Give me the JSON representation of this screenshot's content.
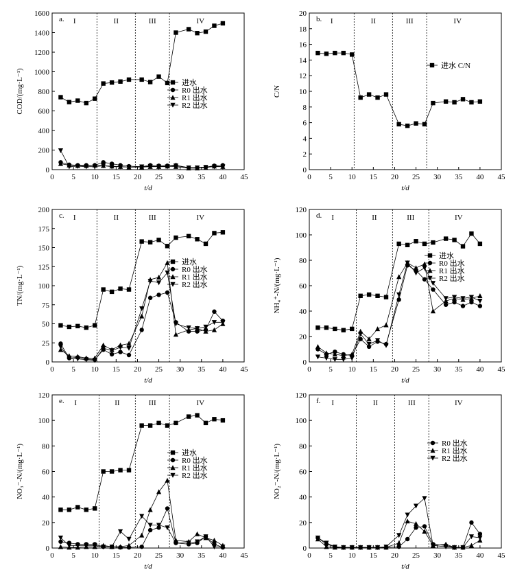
{
  "chart_data": [
    {
      "id": "a",
      "type": "line",
      "panel_label": "a.",
      "xlabel": "t/d",
      "ylabel": "COD/(mg·L⁻¹)",
      "xlim": [
        0,
        45
      ],
      "ylim": [
        0,
        1600
      ],
      "xticks": [
        0,
        5,
        10,
        15,
        20,
        25,
        30,
        35,
        40,
        45
      ],
      "yticks": [
        0,
        200,
        400,
        600,
        800,
        1000,
        1200,
        1400,
        1600
      ],
      "phase_boundaries": [
        10.5,
        19.5,
        27.5
      ],
      "phase_labels": [
        "I",
        "II",
        "III",
        "IV"
      ],
      "legend_position": "right-middle",
      "series": [
        {
          "name": "进水",
          "marker": "square",
          "x": [
            2,
            4,
            6,
            8,
            10,
            12,
            14,
            16,
            18,
            21,
            23,
            25,
            27,
            29,
            32,
            34,
            36,
            38,
            40
          ],
          "y": [
            740,
            690,
            705,
            680,
            725,
            880,
            890,
            900,
            920,
            920,
            895,
            950,
            885,
            1400,
            1435,
            1395,
            1410,
            1470,
            1495
          ]
        },
        {
          "name": "R0 出水",
          "marker": "circle",
          "x": [
            2,
            4,
            6,
            8,
            10,
            12,
            14,
            16,
            18,
            21,
            23,
            25,
            27,
            29,
            32,
            34,
            36,
            38,
            40
          ],
          "y": [
            75,
            50,
            45,
            45,
            45,
            75,
            60,
            45,
            35,
            30,
            45,
            40,
            40,
            45,
            20,
            20,
            25,
            40,
            45
          ]
        },
        {
          "name": "R1 出水",
          "marker": "triangle-up",
          "x": [
            2,
            4,
            6,
            8,
            10,
            12,
            14,
            16,
            18,
            21,
            23,
            25,
            27,
            29,
            32,
            34,
            36,
            38,
            40
          ],
          "y": [
            60,
            45,
            40,
            40,
            45,
            40,
            35,
            30,
            25,
            25,
            30,
            30,
            35,
            30,
            15,
            15,
            20,
            35,
            30
          ]
        },
        {
          "name": "R2 出水",
          "marker": "triangle-down",
          "x": [
            2,
            4,
            6,
            8,
            10,
            12,
            14,
            16,
            18,
            21,
            23,
            25,
            27,
            29,
            32,
            34,
            36,
            38,
            40
          ],
          "y": [
            195,
            30,
            35,
            30,
            30,
            40,
            30,
            30,
            25,
            30,
            35,
            30,
            30,
            40,
            20,
            20,
            25,
            30,
            30
          ]
        }
      ]
    },
    {
      "id": "b",
      "type": "line",
      "panel_label": "b.",
      "xlabel": "t/d",
      "ylabel": "C/N",
      "xlim": [
        0,
        45
      ],
      "ylim": [
        0,
        20
      ],
      "xticks": [
        0,
        5,
        10,
        15,
        20,
        25,
        30,
        35,
        40,
        45
      ],
      "yticks": [
        0,
        2,
        4,
        6,
        8,
        10,
        12,
        14,
        16,
        18,
        20
      ],
      "phase_boundaries": [
        10.5,
        19.5,
        27.5
      ],
      "phase_labels": [
        "I",
        "II",
        "III",
        "IV"
      ],
      "legend_position": "upper-right",
      "series": [
        {
          "name": "进水 C/N",
          "marker": "square",
          "x": [
            2,
            4,
            6,
            8,
            10,
            12,
            14,
            16,
            18,
            21,
            23,
            25,
            27,
            29,
            32,
            34,
            36,
            38,
            40
          ],
          "y": [
            14.9,
            14.8,
            14.9,
            14.9,
            14.7,
            9.2,
            9.6,
            9.2,
            9.6,
            5.8,
            5.6,
            5.9,
            5.8,
            8.5,
            8.7,
            8.6,
            9.0,
            8.6,
            8.7
          ]
        }
      ]
    },
    {
      "id": "c",
      "type": "line",
      "panel_label": "c.",
      "xlabel": "t/d",
      "ylabel": "TN/(mg·L⁻¹)",
      "xlim": [
        0,
        45
      ],
      "ylim": [
        0,
        200
      ],
      "xticks": [
        0,
        5,
        10,
        15,
        20,
        25,
        30,
        35,
        40,
        45
      ],
      "yticks": [
        0,
        25,
        50,
        75,
        100,
        125,
        150,
        175,
        200
      ],
      "phase_boundaries": [
        10.5,
        19.5,
        27.5
      ],
      "phase_labels": [
        "I",
        "II",
        "III",
        "IV"
      ],
      "legend_position": "right-middle",
      "series": [
        {
          "name": "进水",
          "marker": "square",
          "x": [
            2,
            4,
            6,
            8,
            10,
            12,
            14,
            16,
            18,
            21,
            23,
            25,
            27,
            29,
            32,
            34,
            36,
            38,
            40
          ],
          "y": [
            48,
            46,
            47,
            45,
            48,
            95,
            92,
            96,
            95,
            158,
            157,
            160,
            152,
            163,
            165,
            161,
            155,
            169,
            170
          ]
        },
        {
          "name": "R0 出水",
          "marker": "circle",
          "x": [
            2,
            4,
            6,
            8,
            10,
            12,
            14,
            16,
            18,
            21,
            23,
            25,
            27,
            29,
            32,
            34,
            36,
            38,
            40
          ],
          "y": [
            24,
            5,
            6,
            4,
            3,
            16,
            10,
            13,
            9,
            42,
            84,
            88,
            91,
            52,
            40,
            40,
            42,
            66,
            54
          ]
        },
        {
          "name": "R1 出水",
          "marker": "triangle-up",
          "x": [
            2,
            4,
            6,
            8,
            10,
            12,
            14,
            16,
            18,
            21,
            23,
            25,
            27,
            29,
            32,
            34,
            36,
            38,
            40
          ],
          "y": [
            16,
            8,
            7,
            5,
            5,
            22,
            16,
            22,
            24,
            60,
            108,
            111,
            130,
            36,
            42,
            44,
            40,
            42,
            50
          ]
        },
        {
          "name": "R2 出水",
          "marker": "triangle-down",
          "x": [
            2,
            4,
            6,
            8,
            10,
            12,
            14,
            16,
            18,
            21,
            23,
            25,
            27,
            29,
            32,
            34,
            36,
            38,
            40
          ],
          "y": [
            20,
            5,
            4,
            3,
            2,
            18,
            15,
            19,
            18,
            70,
            106,
            104,
            117,
            50,
            45,
            44,
            46,
            52,
            52
          ]
        }
      ]
    },
    {
      "id": "d",
      "type": "line",
      "panel_label": "d.",
      "xlabel": "t/d",
      "ylabel": "NH₄⁺-N/(mg·L⁻¹)",
      "xlim": [
        0,
        45
      ],
      "ylim": [
        0,
        120
      ],
      "xticks": [
        0,
        5,
        10,
        15,
        20,
        25,
        30,
        35,
        40,
        45
      ],
      "yticks": [
        0,
        20,
        40,
        60,
        80,
        100,
        120
      ],
      "phase_boundaries": [
        11,
        19.5,
        28
      ],
      "phase_labels": [
        "I",
        "II",
        "III",
        "IV"
      ],
      "legend_position": "right-middle",
      "series": [
        {
          "name": "进水",
          "marker": "square",
          "x": [
            2,
            4,
            6,
            8,
            10,
            12,
            14,
            16,
            18,
            21,
            23,
            25,
            27,
            29,
            32,
            34,
            36,
            38,
            40
          ],
          "y": [
            27,
            27,
            26,
            25,
            26,
            52,
            53,
            52,
            51,
            93,
            92,
            95,
            93,
            94,
            97,
            96,
            91,
            101,
            93
          ]
        },
        {
          "name": "R0 出水",
          "marker": "circle",
          "x": [
            2,
            4,
            6,
            8,
            10,
            12,
            14,
            16,
            18,
            21,
            23,
            25,
            27,
            29,
            32,
            34,
            36,
            38,
            40
          ],
          "y": [
            10,
            6,
            8,
            6,
            5,
            18,
            12,
            16,
            14,
            49,
            76,
            72,
            65,
            57,
            45,
            47,
            44,
            47,
            44
          ]
        },
        {
          "name": "R1 出水",
          "marker": "triangle-up",
          "x": [
            2,
            4,
            6,
            8,
            10,
            12,
            14,
            16,
            18,
            21,
            23,
            25,
            27,
            29,
            32,
            34,
            36,
            38,
            40
          ],
          "y": [
            12,
            7,
            6,
            5,
            6,
            24,
            18,
            26,
            29,
            67,
            78,
            74,
            77,
            40,
            48,
            50,
            49,
            50,
            52
          ]
        },
        {
          "name": "R2 出水",
          "marker": "triangle-down",
          "x": [
            2,
            4,
            6,
            8,
            10,
            12,
            14,
            16,
            18,
            21,
            23,
            25,
            27,
            29,
            32,
            34,
            36,
            38,
            40
          ],
          "y": [
            4,
            3,
            2,
            2,
            3,
            22,
            14,
            17,
            13,
            53,
            78,
            70,
            74,
            62,
            50,
            51,
            50,
            51,
            48
          ]
        }
      ]
    },
    {
      "id": "e",
      "type": "line",
      "panel_label": "e.",
      "xlabel": "t/d",
      "ylabel": "NO₃⁻-N/(mg·L⁻¹)",
      "xlim": [
        0,
        45
      ],
      "ylim": [
        0,
        120
      ],
      "xticks": [
        0,
        5,
        10,
        15,
        20,
        25,
        30,
        35,
        40,
        45
      ],
      "yticks": [
        0,
        20,
        40,
        60,
        80,
        100,
        120
      ],
      "phase_boundaries": [
        11,
        19.5,
        27.5
      ],
      "phase_labels": [
        "I",
        "II",
        "III",
        "IV"
      ],
      "legend_position": "right-middle",
      "series": [
        {
          "name": "进水",
          "marker": "square",
          "x": [
            2,
            4,
            6,
            8,
            10,
            12,
            14,
            16,
            18,
            21,
            23,
            25,
            27,
            29,
            32,
            34,
            36,
            38,
            40
          ],
          "y": [
            30,
            30,
            32,
            30,
            31,
            60,
            60,
            61,
            61,
            96,
            96,
            98,
            96,
            98,
            103,
            104,
            98,
            101,
            100
          ]
        },
        {
          "name": "R0 出水",
          "marker": "circle",
          "x": [
            2,
            4,
            6,
            8,
            10,
            12,
            14,
            16,
            18,
            21,
            23,
            25,
            27,
            29,
            32,
            34,
            36,
            38,
            40
          ],
          "y": [
            5,
            4,
            3,
            3,
            3,
            1,
            1,
            0.5,
            0.5,
            1,
            14,
            16,
            31,
            4,
            3,
            4,
            9,
            3,
            0.5
          ]
        },
        {
          "name": "R1 出水",
          "marker": "triangle-up",
          "x": [
            2,
            4,
            6,
            8,
            10,
            12,
            14,
            16,
            18,
            21,
            23,
            25,
            27,
            29,
            32,
            34,
            36,
            38,
            40
          ],
          "y": [
            1,
            0.5,
            0.5,
            1,
            1,
            2,
            1,
            1,
            2,
            10,
            30,
            44,
            53,
            6,
            5,
            11,
            8,
            6,
            2
          ]
        },
        {
          "name": "R2 出水",
          "marker": "triangle-down",
          "x": [
            2,
            4,
            6,
            8,
            10,
            12,
            14,
            16,
            18,
            21,
            23,
            25,
            27,
            29,
            32,
            34,
            36,
            38,
            40
          ],
          "y": [
            8,
            2,
            2,
            2,
            2,
            1,
            1,
            13,
            7,
            25,
            18,
            18,
            16,
            4,
            4,
            5,
            9,
            1,
            1
          ]
        }
      ]
    },
    {
      "id": "f",
      "type": "line",
      "panel_label": "f.",
      "xlabel": "t/d",
      "ylabel": "NO₂⁻-N/(mg·L⁻¹)",
      "xlim": [
        0,
        45
      ],
      "ylim": [
        0,
        120
      ],
      "xticks": [
        0,
        5,
        10,
        15,
        20,
        25,
        30,
        35,
        40,
        45
      ],
      "yticks": [
        0,
        20,
        40,
        60,
        80,
        100,
        120
      ],
      "phase_boundaries": [
        11,
        20,
        28
      ],
      "phase_labels": [
        "I",
        "II",
        "III",
        "IV"
      ],
      "legend_position": "upper-right",
      "series": [
        {
          "name": "R0 出水",
          "marker": "circle",
          "x": [
            2,
            4,
            6,
            8,
            10,
            12,
            14,
            16,
            18,
            21,
            23,
            25,
            27,
            29,
            32,
            34,
            36,
            38,
            40
          ],
          "y": [
            8,
            3,
            1,
            0.5,
            0.5,
            0.5,
            0.5,
            0.5,
            0.5,
            1,
            7,
            16,
            17,
            3,
            2,
            0.5,
            0.5,
            20,
            11
          ]
        },
        {
          "name": "R1 出水",
          "marker": "triangle-up",
          "x": [
            2,
            4,
            6,
            8,
            10,
            12,
            14,
            16,
            18,
            21,
            23,
            25,
            27,
            29,
            32,
            34,
            36,
            38,
            40
          ],
          "y": [
            7,
            1,
            0.5,
            0.5,
            0.5,
            0.5,
            0.5,
            0.5,
            0.5,
            4,
            21,
            19,
            13,
            2,
            3,
            0.5,
            0.5,
            2,
            6
          ]
        },
        {
          "name": "R2 出水",
          "marker": "triangle-down",
          "x": [
            2,
            4,
            6,
            8,
            10,
            12,
            14,
            16,
            18,
            21,
            23,
            25,
            27,
            29,
            32,
            34,
            36,
            38,
            40
          ],
          "y": [
            8,
            4,
            1,
            0.5,
            0.5,
            0.5,
            0.5,
            0.5,
            1,
            10,
            26,
            33,
            39,
            2,
            1,
            0.5,
            0.5,
            9,
            8
          ]
        }
      ]
    }
  ]
}
